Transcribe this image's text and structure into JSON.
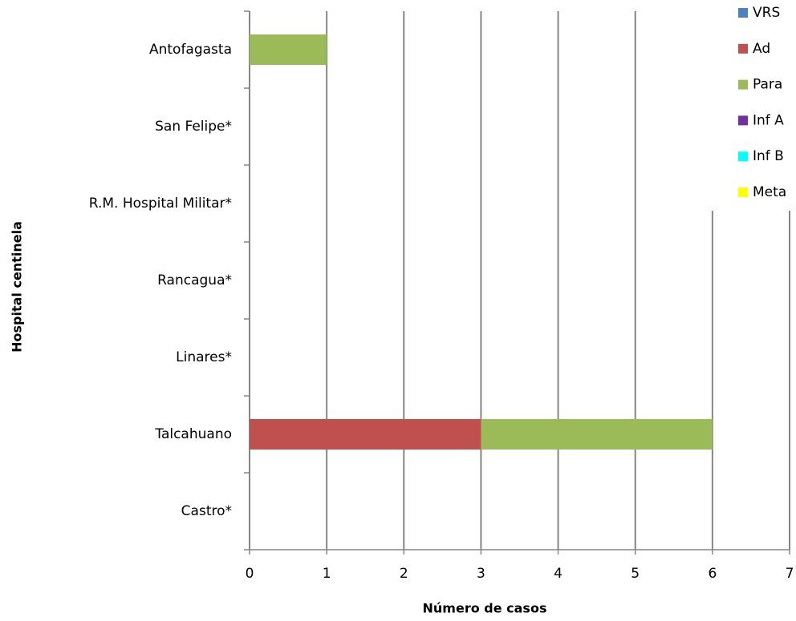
{
  "chart_data": {
    "type": "stacked-barh",
    "xlabel": "Número de casos",
    "ylabel": "Hospital centinela",
    "categories": [
      "Antofagasta",
      "San Felipe*",
      "R.M. Hospital Militar*",
      "Rancagua*",
      "Linares*",
      "Talcahuano",
      "Castro*"
    ],
    "series": [
      {
        "name": "VRS",
        "color": "#4f81bd",
        "values": [
          0,
          0,
          0,
          0,
          0,
          0,
          0
        ]
      },
      {
        "name": "Ad",
        "color": "#c0504d",
        "values": [
          0,
          0,
          0,
          0,
          0,
          3,
          0
        ]
      },
      {
        "name": "Para",
        "color": "#9bbb59",
        "values": [
          1,
          0,
          0,
          0,
          0,
          3,
          0
        ]
      },
      {
        "name": "Inf A",
        "color": "#7030a0",
        "values": [
          0,
          0,
          0,
          0,
          0,
          0,
          0
        ]
      },
      {
        "name": "Inf B",
        "color": "#00ffff",
        "values": [
          0,
          0,
          0,
          0,
          0,
          0,
          0
        ]
      },
      {
        "name": "Meta",
        "color": "#ffff00",
        "values": [
          0,
          0,
          0,
          0,
          0,
          0,
          0
        ]
      }
    ],
    "xlim": [
      0,
      7
    ],
    "xticks": [
      0,
      1,
      2,
      3,
      4,
      5,
      6,
      7
    ],
    "grid": true,
    "legend": "upper right"
  }
}
